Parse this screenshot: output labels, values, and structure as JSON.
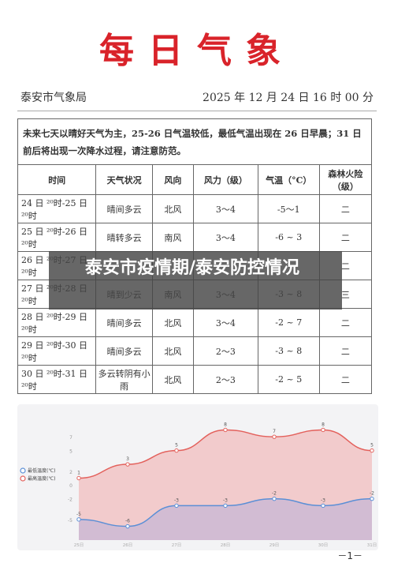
{
  "header": {
    "title": "每日气象",
    "agency": "泰安市气象局",
    "datetime": "2025 年 12 月 24 日 16 时 00 分"
  },
  "notice": "未来七天以晴好天气为主，25-26 日气温较低，最低气温出现在 26 日早晨；31 日前后将出现一次降水过程，请注意防范。",
  "table": {
    "columns": [
      "时间",
      "天气状况",
      "风向",
      "风力（级）",
      "气温（°C）",
      "森林火险（级）"
    ],
    "rows": [
      {
        "time": "24 日 ²⁰时-25 日 ²⁰时",
        "weather": "晴间多云",
        "wind_dir": "北风",
        "wind_force": "3～4",
        "temp": "-5～1",
        "fire": "二"
      },
      {
        "time": "25 日 ²⁰时-26 日 ²⁰时",
        "weather": "晴转多云",
        "wind_dir": "南风",
        "wind_force": "3～4",
        "temp": "-6 ~ 3",
        "fire": "二"
      },
      {
        "time": "26 日 ²⁰时-27 日 ²⁰时",
        "weather": "",
        "wind_dir": "",
        "wind_force": "",
        "temp": "",
        "fire": "二"
      },
      {
        "time": "27 日 ²⁰时-28 日 ²⁰时",
        "weather": "晴到少云",
        "wind_dir": "南风",
        "wind_force": "3～4",
        "temp": "-3 ~ 8",
        "fire": "三"
      },
      {
        "time": "28 日 ²⁰时-29 日 ²⁰时",
        "weather": "晴间多云",
        "wind_dir": "北风",
        "wind_force": "3～4",
        "temp": "-2 ~ 7",
        "fire": "二"
      },
      {
        "time": "29 日 ²⁰时-30 日 ²⁰时",
        "weather": "晴间多云",
        "wind_dir": "北风",
        "wind_force": "2～3",
        "temp": "-3 ~ 8",
        "fire": "二"
      },
      {
        "time": "30 日 ²⁰时-31 日 ²⁰时",
        "weather": "多云转阴有小雨",
        "wind_dir": "北风",
        "wind_force": "2～3",
        "temp": "-2 ~ 5",
        "fire": "二"
      }
    ]
  },
  "banner_text": "泰安市疫情期/泰安防控情况",
  "page_number": "－1－",
  "chart_data": {
    "type": "area",
    "categories": [
      "25日",
      "26日",
      "27日",
      "28日",
      "29日",
      "30日",
      "31日"
    ],
    "series": [
      {
        "name": "最低温度(℃)",
        "values": [
          -5,
          -6,
          -3,
          -3,
          -2,
          -3,
          -2
        ],
        "color": "#5b8fd6"
      },
      {
        "name": "最高温度(℃)",
        "values": [
          1,
          3,
          5,
          8,
          7,
          8,
          5
        ],
        "color": "#e3615c"
      }
    ],
    "yticks": [
      "7",
      "5",
      "2",
      "0",
      "-2",
      "-5"
    ],
    "ylim": [
      -8,
      10
    ],
    "legend_position": "left",
    "grid": false
  }
}
